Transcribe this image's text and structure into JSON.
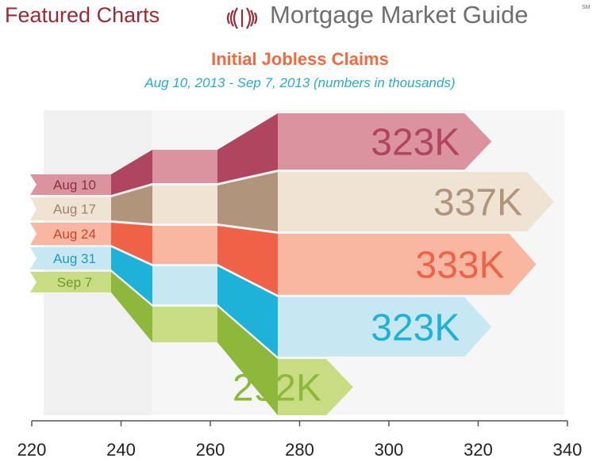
{
  "header": {
    "left_title": "Featured Charts",
    "brand": "Mortgage Market Guide",
    "brand_mark": "SM",
    "brand_icon": "signal-waves-icon"
  },
  "chart_data": {
    "type": "ribbon-bump",
    "title": "Initial Jobless Claims",
    "subtitle": "Aug 10, 2013  - Sep 7, 2013 (numbers in thousands)",
    "xlim": [
      220,
      340
    ],
    "x_ticks": [
      220,
      240,
      260,
      280,
      300,
      320,
      340
    ],
    "rank_stages": [
      [
        "Aug 10",
        "Aug 17",
        "Aug 24",
        "Aug 31",
        "Sep 7"
      ],
      [
        "Aug 10",
        "Aug 17",
        "Aug 24",
        "Aug 31",
        "Sep 7"
      ],
      [
        "Aug 10",
        "Aug 17",
        "Aug 24",
        "Aug 31",
        "Sep 7"
      ],
      [
        "Aug 10",
        "Aug 17",
        "Aug 24",
        "Aug 31",
        "Sep 7"
      ]
    ],
    "series": [
      {
        "name": "Aug 10",
        "value": 323,
        "label": "323K",
        "colors": {
          "dark": "#b0455f",
          "light": "#dc93a0",
          "tag": "#dc93a0",
          "tag_text": "#8a2e44",
          "value_text": "#b0455f"
        }
      },
      {
        "name": "Aug 17",
        "value": 337,
        "label": "337K",
        "colors": {
          "dark": "#b0957c",
          "light": "#efe4d3",
          "tag": "#efe4d3",
          "tag_text": "#a0806a",
          "value_text": "#b0957c"
        }
      },
      {
        "name": "Aug 24",
        "value": 333,
        "label": "333K",
        "colors": {
          "dark": "#ee6348",
          "light": "#f9b7a2",
          "tag": "#f9b7a2",
          "tag_text": "#cc4430",
          "value_text": "#ee6348"
        }
      },
      {
        "name": "Aug 31",
        "value": 323,
        "label": "323K",
        "colors": {
          "dark": "#1fb2d9",
          "light": "#c7e8f3",
          "tag": "#c7e8f3",
          "tag_text": "#1f9bc2",
          "value_text": "#1fb2d9"
        }
      },
      {
        "name": "Sep 7",
        "value": 292,
        "label": "292K",
        "colors": {
          "dark": "#8db83c",
          "light": "#c8dd83",
          "tag": "#c8dd83",
          "tag_text": "#6f9a2a",
          "value_text": "#8db83c"
        }
      }
    ],
    "background_band_color": "#e4e4e4",
    "axis_color": "#555555",
    "grid": false
  }
}
